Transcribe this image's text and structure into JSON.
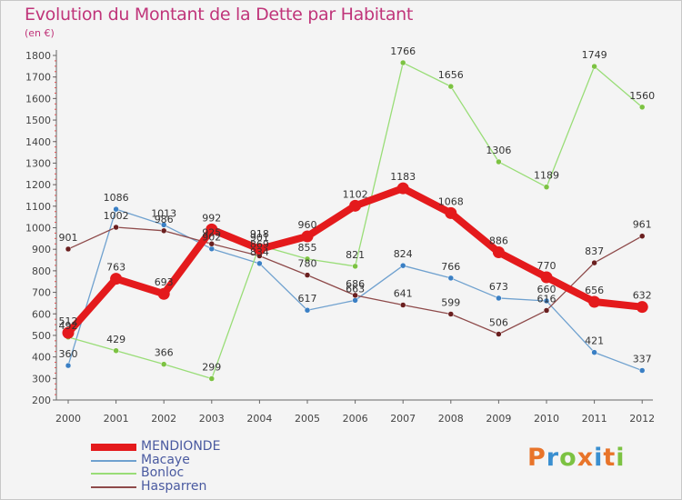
{
  "title": "Evolution du Montant de la Dette par Habitant",
  "unit": "(en €)",
  "logo": {
    "text": "Proxiti",
    "colors": [
      "#e8742a",
      "#3a8fd0",
      "#7cc242",
      "#e8742a",
      "#3a8fd0",
      "#e8742a",
      "#7cc242"
    ]
  },
  "chart_data": {
    "type": "line",
    "x": [
      "2000",
      "2001",
      "2002",
      "2003",
      "2004",
      "2005",
      "2006",
      "2007",
      "2008",
      "2009",
      "2010",
      "2011",
      "2012"
    ],
    "ylim": [
      200,
      1800
    ],
    "yticks": [
      200,
      300,
      400,
      500,
      600,
      700,
      800,
      900,
      1000,
      1100,
      1200,
      1300,
      1400,
      1500,
      1600,
      1700,
      1800
    ],
    "grid": false,
    "legend_position": "bottom-left",
    "series": [
      {
        "name": "MENDIONDE",
        "color": "#e41a1c",
        "markerColor": "#e41a1c",
        "width": 8,
        "values": [
          512,
          763,
          693,
          992,
          901,
          960,
          1102,
          1183,
          1068,
          886,
          770,
          656,
          632
        ],
        "labels": [
          "512",
          "763",
          "693",
          "992",
          "901",
          "960",
          "1102",
          "1183",
          "1068",
          "886",
          "770",
          "656",
          "632"
        ]
      },
      {
        "name": "Macaye",
        "color": "#6fa1cf",
        "markerColor": "#3a7fc4",
        "width": 1.3,
        "values": [
          360,
          1086,
          1013,
          902,
          834,
          617,
          663,
          824,
          766,
          673,
          660,
          421,
          337
        ],
        "labels": [
          "360",
          "1086",
          "1013",
          "902",
          "834",
          "617",
          "663",
          "824",
          "766",
          "673",
          "660",
          "421",
          "337"
        ]
      },
      {
        "name": "Bonloc",
        "color": "#99dd77",
        "markerColor": "#7cc242",
        "width": 1.3,
        "values": [
          492,
          429,
          366,
          299,
          918,
          855,
          821,
          1766,
          1656,
          1306,
          1189,
          1749,
          1560
        ],
        "labels": [
          "492",
          "429",
          "366",
          "299",
          "918",
          "855",
          "821",
          "1766",
          "1656",
          "1306",
          "1189",
          "1749",
          "1560"
        ]
      },
      {
        "name": "Hasparren",
        "color": "#8e4a4a",
        "markerColor": "#6a1f1f",
        "width": 1.3,
        "values": [
          901,
          1002,
          986,
          925,
          869,
          780,
          686,
          641,
          599,
          506,
          616,
          837,
          961
        ],
        "labels": [
          "901",
          "1002",
          "986",
          "925",
          "869",
          "780",
          "686",
          "641",
          "599",
          "506",
          "616",
          "837",
          "961"
        ]
      }
    ]
  }
}
